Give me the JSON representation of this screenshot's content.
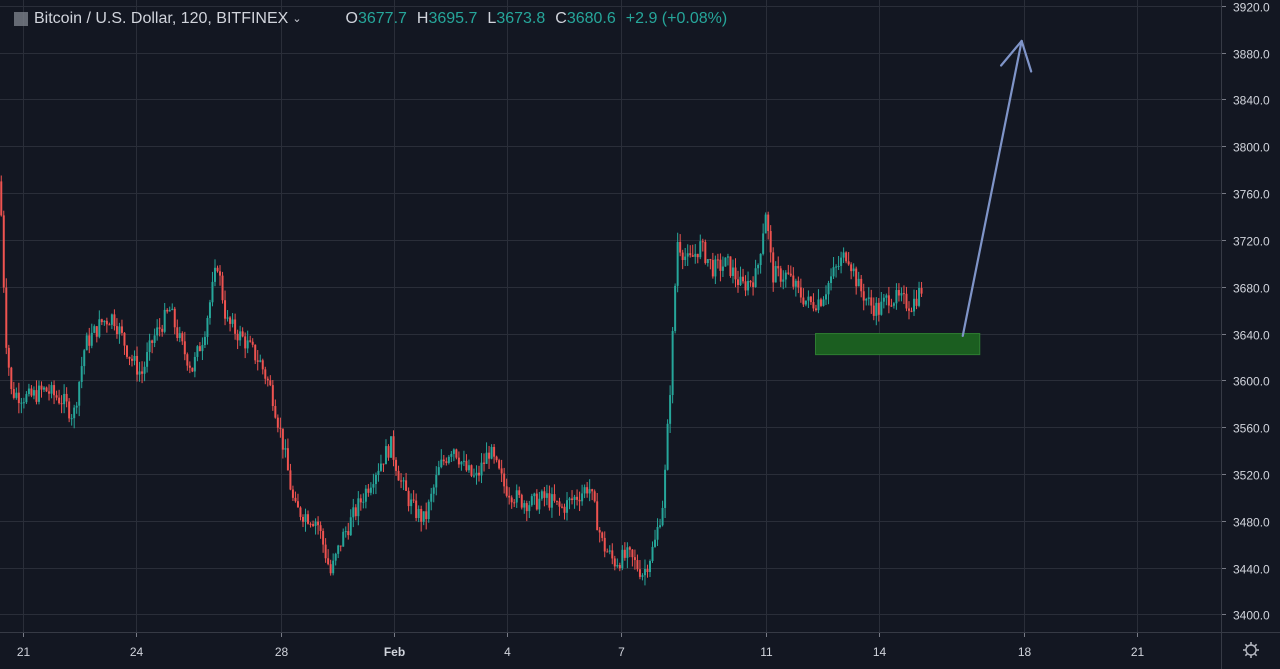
{
  "header": {
    "symbol": "Bitcoin / U.S. Dollar, 120, BITFINEX",
    "open_label": "O",
    "open": "3677.7",
    "high_label": "H",
    "high": "3695.7",
    "low_label": "L",
    "low": "3673.8",
    "close_label": "C",
    "close": "3680.6",
    "change": "+2.9 (+0.08%)"
  },
  "colors": {
    "background": "#131722",
    "grid": "#2a2e39",
    "up": "#26a69a",
    "down": "#ef5350",
    "text": "#d1d4dc",
    "zone": "#1b5e20",
    "arrow": "#7f94c8"
  },
  "chart_data": {
    "type": "candlestick",
    "interval": "120",
    "exchange": "BITFINEX",
    "ylim": [
      3385,
      3925
    ],
    "y_ticks": [
      3400,
      3440,
      3480,
      3520,
      3560,
      3600,
      3640,
      3680,
      3720,
      3760,
      3800,
      3840,
      3880,
      3920
    ],
    "y_tick_labels": [
      "3400.0",
      "3440.0",
      "3480.0",
      "3520.0",
      "3560.0",
      "3600.0",
      "3640.0",
      "3680.0",
      "3720.0",
      "3760.0",
      "3800.0",
      "3840.0",
      "3880.0",
      "3920.0"
    ],
    "x_range": [
      20.8,
      31.58
    ],
    "x_ticks": [
      {
        "label": "21",
        "x": 21.0
      },
      {
        "label": "24",
        "x": 22.0
      },
      {
        "label": "28",
        "x": 23.28
      },
      {
        "label": "Feb",
        "x": 24.28
      },
      {
        "label": "4",
        "x": 25.28
      },
      {
        "label": "7",
        "x": 26.28
      },
      {
        "label": "11",
        "x": 27.56
      },
      {
        "label": "14",
        "x": 28.56
      },
      {
        "label": "18",
        "x": 29.84
      },
      {
        "label": "21",
        "x": 30.84
      }
    ],
    "grid": true,
    "price_path": [
      [
        20.8,
        3770
      ],
      [
        20.85,
        3640
      ],
      [
        20.9,
        3590
      ],
      [
        21.05,
        3585
      ],
      [
        21.2,
        3592
      ],
      [
        21.35,
        3583
      ],
      [
        21.45,
        3570
      ],
      [
        21.55,
        3630
      ],
      [
        21.7,
        3650
      ],
      [
        21.8,
        3655
      ],
      [
        21.95,
        3620
      ],
      [
        22.05,
        3605
      ],
      [
        22.15,
        3635
      ],
      [
        22.3,
        3660
      ],
      [
        22.4,
        3630
      ],
      [
        22.5,
        3610
      ],
      [
        22.6,
        3640
      ],
      [
        22.72,
        3700
      ],
      [
        22.8,
        3650
      ],
      [
        22.95,
        3635
      ],
      [
        23.1,
        3615
      ],
      [
        23.2,
        3590
      ],
      [
        23.3,
        3545
      ],
      [
        23.4,
        3490
      ],
      [
        23.5,
        3485
      ],
      [
        23.6,
        3480
      ],
      [
        23.72,
        3435
      ],
      [
        23.82,
        3465
      ],
      [
        23.95,
        3490
      ],
      [
        24.1,
        3520
      ],
      [
        24.25,
        3545
      ],
      [
        24.35,
        3510
      ],
      [
        24.45,
        3490
      ],
      [
        24.55,
        3480
      ],
      [
        24.68,
        3525
      ],
      [
        24.8,
        3545
      ],
      [
        24.9,
        3525
      ],
      [
        25.0,
        3515
      ],
      [
        25.12,
        3540
      ],
      [
        25.25,
        3510
      ],
      [
        25.38,
        3498
      ],
      [
        25.5,
        3495
      ],
      [
        25.62,
        3500
      ],
      [
        25.75,
        3490
      ],
      [
        25.88,
        3500
      ],
      [
        26.0,
        3510
      ],
      [
        26.12,
        3460
      ],
      [
        26.22,
        3445
      ],
      [
        26.35,
        3450
      ],
      [
        26.48,
        3435
      ],
      [
        26.58,
        3460
      ],
      [
        26.66,
        3500
      ],
      [
        26.72,
        3600
      ],
      [
        26.78,
        3720
      ],
      [
        26.88,
        3700
      ],
      [
        26.98,
        3715
      ],
      [
        27.1,
        3695
      ],
      [
        27.22,
        3700
      ],
      [
        27.35,
        3680
      ],
      [
        27.48,
        3690
      ],
      [
        27.56,
        3745
      ],
      [
        27.62,
        3690
      ],
      [
        27.75,
        3690
      ],
      [
        27.85,
        3675
      ],
      [
        27.95,
        3665
      ],
      [
        28.05,
        3670
      ],
      [
        28.15,
        3690
      ],
      [
        28.28,
        3710
      ],
      [
        28.38,
        3680
      ],
      [
        28.48,
        3665
      ],
      [
        28.56,
        3660
      ],
      [
        28.65,
        3672
      ],
      [
        28.75,
        3668
      ],
      [
        28.85,
        3665
      ],
      [
        28.95,
        3680
      ]
    ],
    "support_zone": {
      "x0": 28.0,
      "x1": 29.45,
      "y0": 3622,
      "y1": 3640
    },
    "arrow": {
      "from": [
        29.3,
        3638
      ],
      "to": [
        29.82,
        3890
      ]
    }
  },
  "footer": {
    "settings_icon": "gear-icon"
  }
}
